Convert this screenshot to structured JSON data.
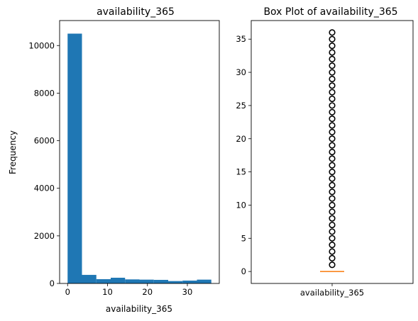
{
  "chart_data": [
    {
      "type": "bar",
      "title": "availability_365",
      "xlabel": "availability_365",
      "ylabel": "Frequency",
      "bin_edges": [
        0,
        3.6,
        7.2,
        10.8,
        14.4,
        18.0,
        21.6,
        25.2,
        28.8,
        32.4,
        36
      ],
      "values": [
        10500,
        360,
        180,
        240,
        170,
        160,
        150,
        100,
        120,
        160
      ],
      "xlim": [
        -2,
        38
      ],
      "ylim": [
        0,
        11050
      ],
      "xticks": [
        0,
        10,
        20,
        30
      ],
      "yticks": [
        0,
        2000,
        4000,
        6000,
        8000,
        10000
      ],
      "bar_color": "#1f77b4",
      "grid": false
    },
    {
      "type": "box",
      "title": "Box Plot of availability_365",
      "categories": [
        "availability_365"
      ],
      "median": 0,
      "q1": 0,
      "q3": 0,
      "whisker_low": 0,
      "whisker_high": 0,
      "outliers": [
        1,
        2,
        3,
        4,
        5,
        6,
        7,
        8,
        9,
        10,
        11,
        12,
        13,
        14,
        15,
        16,
        17,
        18,
        19,
        20,
        21,
        22,
        23,
        24,
        25,
        26,
        27,
        28,
        29,
        30,
        31,
        32,
        33,
        34,
        35,
        36
      ],
      "ylim": [
        -1.8,
        37.8
      ],
      "yticks": [
        0,
        5,
        10,
        15,
        20,
        25,
        30,
        35
      ],
      "median_color": "#ff7f0e",
      "grid": false
    }
  ]
}
